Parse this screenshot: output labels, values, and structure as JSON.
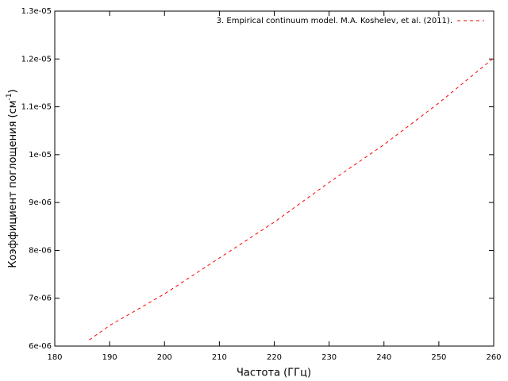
{
  "chart_data": {
    "type": "line",
    "x_label": "Частота (ГГц)",
    "y_label": {
      "text": "Коэффициент поглощения (см",
      "superscript": "-1",
      "suffix": ")"
    },
    "x": [
      186.3,
      190,
      200,
      210,
      220,
      230,
      240,
      250,
      260
    ],
    "series": [
      {
        "name": "3. Empirical continuum model. M.A. Koshelev, et al. (2011).",
        "color": "#ff0000",
        "values": [
          6.13e-06,
          6.43e-06,
          7.09e-06,
          7.84e-06,
          8.59e-06,
          9.42e-06,
          1.021e-05,
          1.108e-05,
          1.202e-05
        ]
      }
    ],
    "xlim": [
      180,
      260
    ],
    "xticks": [
      180,
      190,
      200,
      210,
      220,
      230,
      240,
      250,
      260
    ],
    "ylim": [
      6e-06,
      1.3e-05
    ],
    "yticks": [
      {
        "value": 6e-06,
        "label": "6e-06"
      },
      {
        "value": 7e-06,
        "label": "7e-06"
      },
      {
        "value": 8e-06,
        "label": "8e-06"
      },
      {
        "value": 9e-06,
        "label": "9e-06"
      },
      {
        "value": 1e-05,
        "label": "1e-05"
      },
      {
        "value": 1.1e-05,
        "label": "1.1e-05"
      },
      {
        "value": 1.2e-05,
        "label": "1.2e-05"
      },
      {
        "value": 1.3e-05,
        "label": "1.3e-05"
      }
    ],
    "grid": false,
    "legend": "top-right"
  }
}
